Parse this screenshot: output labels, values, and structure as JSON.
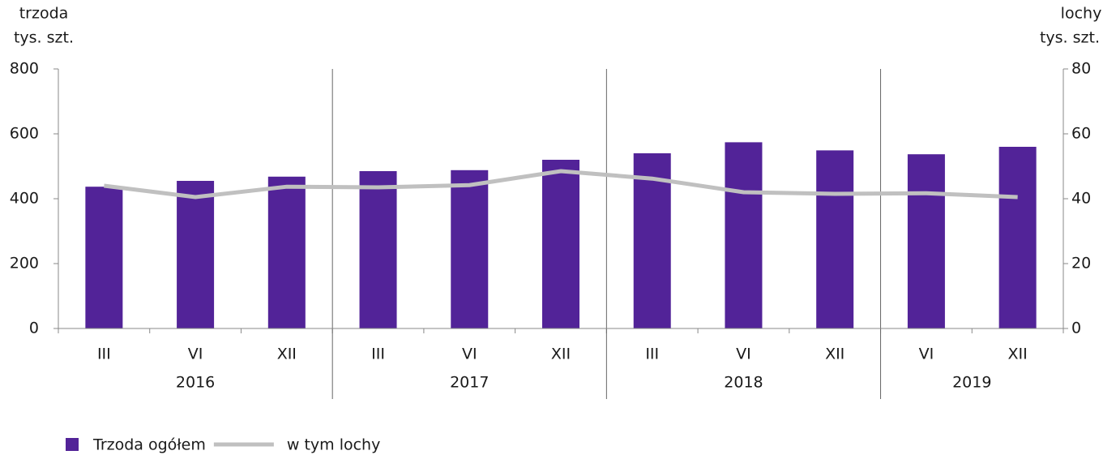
{
  "chart_data": {
    "type": "bar_line",
    "ylabel": [
      "trzoda",
      "tys. szt."
    ],
    "y2label": [
      "lochy",
      "tys. szt."
    ],
    "categories": [
      "III",
      "VI",
      "XII",
      "III",
      "VI",
      "XII",
      "III",
      "VI",
      "XII",
      "VI",
      "XII"
    ],
    "groups": [
      {
        "label": "2016",
        "count": 3
      },
      {
        "label": "2017",
        "count": 3
      },
      {
        "label": "2018",
        "count": 3
      },
      {
        "label": "2019",
        "count": 2
      }
    ],
    "series": [
      {
        "name": "Trzoda ogółem",
        "type": "bar",
        "color": "#522398",
        "values": [
          437,
          455,
          468,
          485,
          488,
          520,
          540,
          574,
          549,
          537,
          560
        ]
      },
      {
        "name": "w tym lochy",
        "type": "line",
        "axis": "y2",
        "color": "#c0c0c0",
        "values": [
          44.0,
          40.5,
          43.7,
          43.5,
          44.2,
          48.5,
          46.2,
          42.0,
          41.5,
          41.7,
          40.5
        ]
      }
    ],
    "ylim": [
      0,
      800
    ],
    "yticks": [
      0,
      200,
      400,
      600,
      800
    ],
    "y2lim": [
      0,
      80
    ],
    "y2ticks": [
      0,
      20,
      40,
      60,
      80
    ]
  }
}
